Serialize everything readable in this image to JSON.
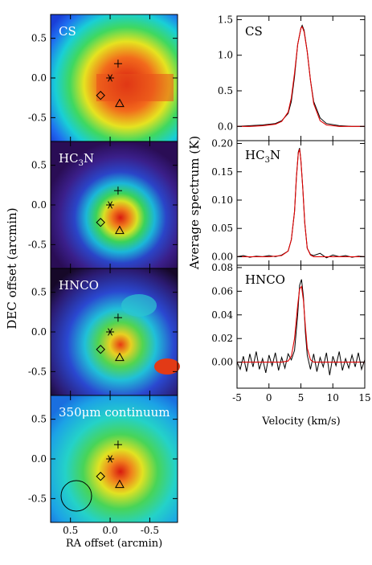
{
  "left_panel": {
    "xlabel": "RA offset (arcmin)",
    "ylabel": "DEC offset (arcmin)",
    "x_ticks": [
      "0.5",
      "0.0",
      "-0.5"
    ],
    "y_ticks": [
      "0.5",
      "0.0",
      "-0.5"
    ],
    "maps": [
      {
        "label": "CS",
        "label_sub": "",
        "label_tail": ""
      },
      {
        "label": "HC",
        "label_sub": "3",
        "label_tail": "N"
      },
      {
        "label": "HNCO",
        "label_sub": "",
        "label_tail": ""
      },
      {
        "label": "350μm continuum",
        "label_sub": "",
        "label_tail": ""
      }
    ],
    "markers": [
      "plus",
      "asterisk",
      "diamond",
      "triangle"
    ],
    "beam": "circle"
  },
  "chart_data": {
    "type": "line",
    "xlabel": "Velocity (km/s)",
    "ylabel": "Average spectrum (K)",
    "x_ticks": [
      "-5",
      "0",
      "5",
      "10",
      "15"
    ],
    "xlim": [
      -5,
      15
    ],
    "panels": [
      {
        "label": "CS",
        "label_sub": "",
        "label_tail": "",
        "ylim": [
          -0.2,
          1.55
        ],
        "y_ticks": [
          "0.0",
          "0.5",
          "1.0",
          "1.5"
        ],
        "series": [
          {
            "color": "#000000",
            "x": [
              -5,
              -3,
              -1,
              1,
              2,
              3,
              3.5,
              4,
              4.5,
              5,
              5.2,
              5.5,
              6,
              6.5,
              7,
              8,
              9,
              11,
              13,
              15
            ],
            "y": [
              0.0,
              0.01,
              0.02,
              0.04,
              0.08,
              0.18,
              0.35,
              0.7,
              1.15,
              1.38,
              1.42,
              1.35,
              1.05,
              0.65,
              0.35,
              0.12,
              0.04,
              0.01,
              0.0,
              0.0
            ]
          },
          {
            "color": "#e00000",
            "x": [
              -5,
              -3,
              -1,
              1,
              2,
              3,
              3.5,
              4,
              4.5,
              5,
              5.2,
              5.5,
              6,
              6.5,
              7,
              8,
              9,
              11,
              13,
              15
            ],
            "y": [
              0.0,
              0.0,
              0.01,
              0.03,
              0.07,
              0.2,
              0.4,
              0.75,
              1.15,
              1.38,
              1.4,
              1.33,
              1.05,
              0.65,
              0.32,
              0.08,
              0.02,
              0.0,
              0.0,
              0.0
            ]
          }
        ]
      },
      {
        "label": "HC",
        "label_sub": "3",
        "label_tail": "N",
        "ylim": [
          -0.015,
          0.205
        ],
        "y_ticks": [
          "0.00",
          "0.05",
          "0.10",
          "0.15",
          "0.20"
        ],
        "series": [
          {
            "color": "#000000",
            "x": [
              -5,
              -4,
              -3,
              -2,
              -1,
              0,
              1,
              2,
              3,
              3.5,
              4,
              4.3,
              4.6,
              4.8,
              5.0,
              5.3,
              5.6,
              6,
              6.5,
              7,
              8,
              9,
              10,
              11,
              12,
              13,
              14,
              15
            ],
            "y": [
              0.0,
              0.002,
              -0.001,
              0.001,
              0.0,
              0.002,
              0.0,
              0.003,
              0.01,
              0.03,
              0.08,
              0.14,
              0.185,
              0.192,
              0.17,
              0.12,
              0.06,
              0.015,
              0.004,
              0.002,
              0.006,
              -0.002,
              0.003,
              0.0,
              0.002,
              -0.001,
              0.001,
              0.0
            ]
          },
          {
            "color": "#e00000",
            "x": [
              -5,
              0,
              2,
              3,
              3.5,
              4,
              4.3,
              4.6,
              4.8,
              5.0,
              5.3,
              5.6,
              6,
              6.5,
              7,
              10,
              15
            ],
            "y": [
              0.0,
              0.0,
              0.002,
              0.01,
              0.03,
              0.08,
              0.14,
              0.183,
              0.19,
              0.17,
              0.12,
              0.06,
              0.015,
              0.003,
              0.0,
              0.0,
              0.0
            ]
          }
        ]
      },
      {
        "label": "HNCO",
        "label_sub": "",
        "label_tail": "",
        "ylim": [
          -0.022,
          0.082
        ],
        "y_ticks": [
          "0.00",
          "0.02",
          "0.04",
          "0.06",
          "0.08"
        ],
        "series": [
          {
            "color": "#000000",
            "x": [
              -5,
              -4.5,
              -4,
              -3.5,
              -3,
              -2.5,
              -2,
              -1.5,
              -1,
              -0.5,
              0,
              0.5,
              1,
              1.5,
              2,
              2.5,
              3,
              3.5,
              4,
              4.5,
              4.8,
              5.1,
              5.4,
              5.7,
              6,
              6.5,
              7,
              7.5,
              8,
              8.5,
              9,
              9.5,
              10,
              10.5,
              11,
              11.5,
              12,
              12.5,
              13,
              13.5,
              14,
              14.5,
              15
            ],
            "y": [
              0.0,
              -0.006,
              0.005,
              -0.008,
              0.007,
              -0.004,
              0.009,
              -0.006,
              0.003,
              -0.009,
              0.006,
              -0.003,
              0.008,
              -0.007,
              0.004,
              -0.005,
              0.007,
              0.002,
              0.01,
              0.04,
              0.065,
              0.07,
              0.055,
              0.025,
              0.006,
              -0.006,
              0.007,
              -0.008,
              0.004,
              -0.004,
              0.008,
              -0.011,
              0.005,
              -0.003,
              0.009,
              -0.007,
              0.003,
              -0.005,
              0.006,
              -0.004,
              0.008,
              -0.006,
              0.002
            ]
          },
          {
            "color": "#e00000",
            "x": [
              -5,
              2,
              3,
              3.5,
              4,
              4.5,
              4.8,
              5.1,
              5.4,
              5.7,
              6,
              6.5,
              7,
              10,
              15
            ],
            "y": [
              0.0,
              0.0,
              0.001,
              0.005,
              0.02,
              0.048,
              0.062,
              0.064,
              0.052,
              0.03,
              0.012,
              0.002,
              0.0,
              0.0,
              0.0
            ]
          }
        ]
      }
    ]
  }
}
